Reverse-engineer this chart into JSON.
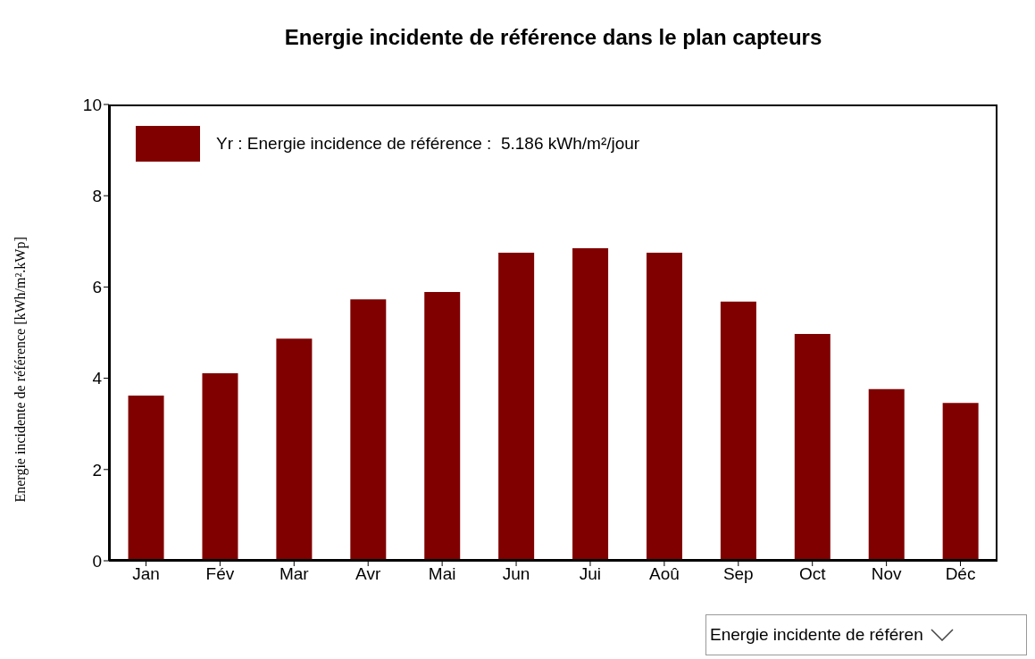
{
  "chart_data": {
    "type": "bar",
    "title": "Energie incidente de référence dans le plan capteurs",
    "ylabel": "Energie incidente de référence [kWh/m².kWp]",
    "categories": [
      "Jan",
      "Fév",
      "Mar",
      "Avr",
      "Mai",
      "Jun",
      "Jui",
      "Aoû",
      "Sep",
      "Oct",
      "Nov",
      "Déc"
    ],
    "series": [
      {
        "name": "Yr : Energie incidence de référence :  5.186 kWh/m²/jour",
        "color": "#800000",
        "values": [
          3.62,
          4.11,
          4.87,
          5.73,
          5.89,
          6.75,
          6.85,
          6.75,
          5.68,
          4.97,
          3.76,
          3.46
        ]
      }
    ],
    "ylim": [
      0,
      10
    ],
    "yticks": [
      0,
      2,
      4,
      6,
      8,
      10
    ],
    "legend": "top left",
    "annotations": [
      "Energie incidente de référen"
    ]
  }
}
